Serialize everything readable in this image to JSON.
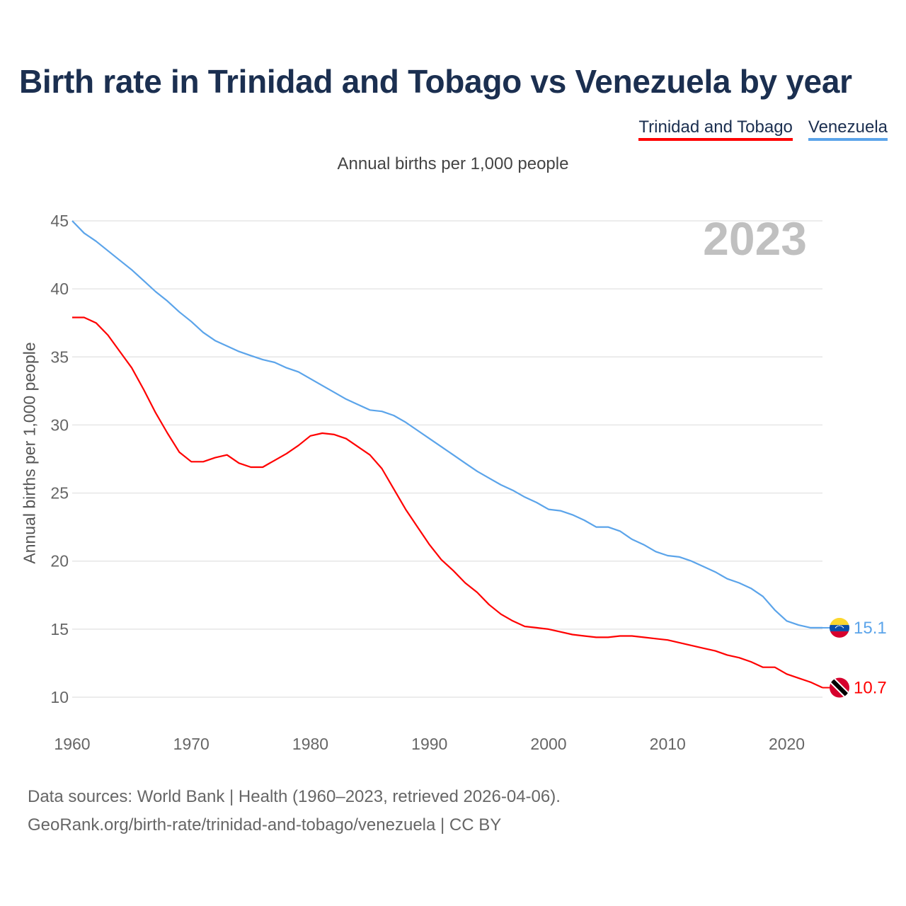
{
  "title": "Birth rate in Trinidad and Tobago vs Venezuela by year",
  "subtitle": "Annual births per 1,000 people",
  "footer": {
    "line1": "Data sources: World Bank | Health (1960–2023, retrieved 2026-04-06).",
    "line2": "GeoRank.org/birth-rate/trinidad-and-tobago/venezuela | CC BY"
  },
  "chart_data": {
    "type": "line",
    "title": "Birth rate in Trinidad and Tobago vs Venezuela by year",
    "subtitle": "Annual births per 1,000 people",
    "xlabel": "",
    "ylabel": "Annual births per 1,000 people",
    "year_label": "2023",
    "xlim": [
      1960,
      2023
    ],
    "ylim": [
      10,
      45
    ],
    "x_ticks": [
      1960,
      1970,
      1980,
      1990,
      2000,
      2010,
      2020
    ],
    "y_ticks": [
      10,
      15,
      20,
      25,
      30,
      35,
      40,
      45
    ],
    "grid": true,
    "legend_position": "top-right",
    "x_start": 1960,
    "series": [
      {
        "name": "Trinidad and Tobago",
        "color": "#ff0000",
        "flag": "trinidad-and-tobago-flag",
        "end_label": "10.7",
        "values": [
          37.9,
          37.9,
          37.5,
          36.6,
          35.4,
          34.2,
          32.6,
          30.9,
          29.4,
          28.0,
          27.3,
          27.3,
          27.6,
          27.8,
          27.2,
          26.9,
          26.9,
          27.4,
          27.9,
          28.5,
          29.2,
          29.4,
          29.3,
          29.0,
          28.4,
          27.8,
          26.8,
          25.3,
          23.8,
          22.5,
          21.2,
          20.1,
          19.3,
          18.4,
          17.7,
          16.8,
          16.1,
          15.6,
          15.2,
          15.1,
          15.0,
          14.8,
          14.6,
          14.5,
          14.4,
          14.4,
          14.5,
          14.5,
          14.4,
          14.3,
          14.2,
          14.0,
          13.8,
          13.6,
          13.4,
          13.1,
          12.9,
          12.6,
          12.2,
          12.2,
          11.7,
          11.4,
          11.1,
          10.7
        ]
      },
      {
        "name": "Venezuela",
        "color": "#5ba4ea",
        "flag": "venezuela-flag",
        "end_label": "15.1",
        "values": [
          45.0,
          44.1,
          43.5,
          42.8,
          42.1,
          41.4,
          40.6,
          39.8,
          39.1,
          38.3,
          37.6,
          36.8,
          36.2,
          35.8,
          35.4,
          35.1,
          34.8,
          34.6,
          34.2,
          33.9,
          33.4,
          32.9,
          32.4,
          31.9,
          31.5,
          31.1,
          31.0,
          30.7,
          30.2,
          29.6,
          29.0,
          28.4,
          27.8,
          27.2,
          26.6,
          26.1,
          25.6,
          25.2,
          24.7,
          24.3,
          23.8,
          23.7,
          23.4,
          23.0,
          22.5,
          22.5,
          22.2,
          21.6,
          21.2,
          20.7,
          20.4,
          20.3,
          20.0,
          19.6,
          19.2,
          18.7,
          18.4,
          18.0,
          17.4,
          16.4,
          15.6,
          15.3,
          15.1,
          15.1
        ]
      }
    ]
  }
}
